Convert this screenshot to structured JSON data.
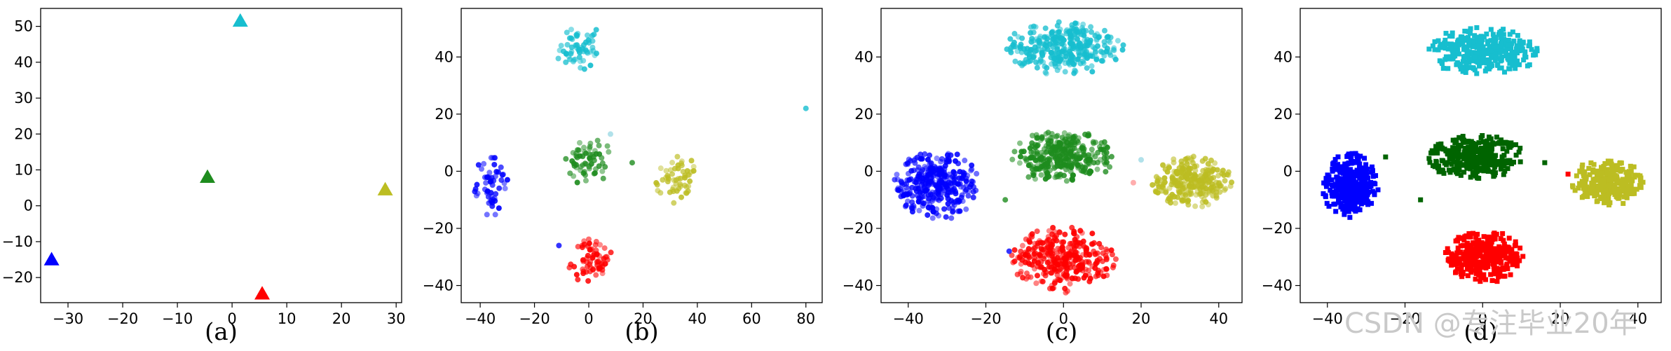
{
  "figure": {
    "watermark": "CSDN @专注毕业20年"
  },
  "chart_data": [
    {
      "type": "scatter",
      "caption": "(a)",
      "marker": "triangle",
      "xlim": [
        -35,
        31
      ],
      "ylim": [
        -27,
        55
      ],
      "xticks": [
        -30,
        -20,
        -10,
        0,
        10,
        20,
        30
      ],
      "yticks": [
        -20,
        -10,
        0,
        10,
        20,
        30,
        40,
        50
      ],
      "points": [
        {
          "x": 1.5,
          "y": 51.5,
          "color": "#17becf"
        },
        {
          "x": -4.5,
          "y": 8,
          "color": "#1e8c1e"
        },
        {
          "x": 28,
          "y": 4.5,
          "color": "#bcbd22"
        },
        {
          "x": -33,
          "y": -15,
          "color": "#0000ff"
        },
        {
          "x": 5.5,
          "y": -24.5,
          "color": "#ff0000"
        }
      ]
    },
    {
      "type": "scatter",
      "caption": "(b)",
      "marker": "circle",
      "xlim": [
        -47,
        86
      ],
      "ylim": [
        -46,
        57
      ],
      "xticks": [
        -40,
        -20,
        0,
        20,
        40,
        60,
        80
      ],
      "yticks": [
        -40,
        -20,
        0,
        20,
        40
      ],
      "clusters": [
        {
          "color": "#17becf",
          "cx": -3,
          "cy": 43,
          "rx": 9,
          "ry": 9,
          "n": 60
        },
        {
          "color": "#1e8c1e",
          "cx": 0,
          "cy": 3,
          "rx": 10,
          "ry": 8,
          "n": 60
        },
        {
          "color": "#bcbd22",
          "cx": 32,
          "cy": -3,
          "rx": 8,
          "ry": 9,
          "n": 55
        },
        {
          "color": "#0000ff",
          "cx": -36,
          "cy": -5,
          "rx": 6,
          "ry": 11,
          "n": 55
        },
        {
          "color": "#ff0000",
          "cx": 0,
          "cy": -31,
          "rx": 9,
          "ry": 9,
          "n": 65
        }
      ],
      "outliers": [
        {
          "x": 80,
          "y": 22,
          "color": "#17becf"
        },
        {
          "x": 16,
          "y": 3,
          "color": "#1e8c1e"
        },
        {
          "x": 8,
          "y": 13,
          "color": "#9edae5"
        },
        {
          "x": -11,
          "y": -26,
          "color": "#0000ff"
        }
      ]
    },
    {
      "type": "scatter",
      "caption": "(c)",
      "marker": "circle",
      "xlim": [
        -47,
        46
      ],
      "ylim": [
        -46,
        57
      ],
      "xticks": [
        -40,
        -20,
        0,
        20,
        40
      ],
      "yticks": [
        -40,
        -20,
        0,
        20,
        40
      ],
      "clusters": [
        {
          "color": "#17becf",
          "cx": 0,
          "cy": 43,
          "rx": 15,
          "ry": 9,
          "n": 320
        },
        {
          "color": "#1e8c1e",
          "cx": 0,
          "cy": 5,
          "rx": 13,
          "ry": 9,
          "n": 320
        },
        {
          "color": "#bcbd22",
          "cx": 33,
          "cy": -4,
          "rx": 10,
          "ry": 9,
          "n": 260
        },
        {
          "color": "#0000ff",
          "cx": -33,
          "cy": -5,
          "rx": 11,
          "ry": 12,
          "n": 320
        },
        {
          "color": "#ff0000",
          "cx": 0,
          "cy": -31,
          "rx": 13,
          "ry": 11,
          "n": 330
        }
      ],
      "outliers": [
        {
          "x": -15,
          "y": -10,
          "color": "#1e8c1e"
        },
        {
          "x": 20,
          "y": 4,
          "color": "#9edae5"
        },
        {
          "x": -14,
          "y": -28,
          "color": "#0000ff"
        },
        {
          "x": 18,
          "y": -4,
          "color": "#ff9999"
        }
      ]
    },
    {
      "type": "scatter",
      "caption": "(d)",
      "marker": "square",
      "xlim": [
        -47,
        46
      ],
      "ylim": [
        -46,
        57
      ],
      "xticks": [
        -40,
        -20,
        0,
        20,
        40
      ],
      "yticks": [
        -40,
        -20,
        0,
        20,
        40
      ],
      "clusters": [
        {
          "color": "#17becf",
          "cx": 0,
          "cy": 42,
          "rx": 14,
          "ry": 8,
          "n": 330
        },
        {
          "color": "#006400",
          "cx": -2,
          "cy": 5,
          "rx": 12,
          "ry": 8,
          "n": 300
        },
        {
          "color": "#bcbd22",
          "cx": 32,
          "cy": -4,
          "rx": 9,
          "ry": 8,
          "n": 280
        },
        {
          "color": "#0000ff",
          "cx": -34,
          "cy": -5,
          "rx": 7,
          "ry": 11,
          "n": 330
        },
        {
          "color": "#ff0000",
          "cx": 0,
          "cy": -30,
          "rx": 10,
          "ry": 9,
          "n": 330
        }
      ],
      "outliers": [
        {
          "x": -16,
          "y": -10,
          "color": "#006400"
        },
        {
          "x": -25,
          "y": 5,
          "color": "#006400"
        },
        {
          "x": 16,
          "y": 3,
          "color": "#006400"
        },
        {
          "x": 22,
          "y": -1,
          "color": "#ff0000"
        }
      ]
    }
  ]
}
